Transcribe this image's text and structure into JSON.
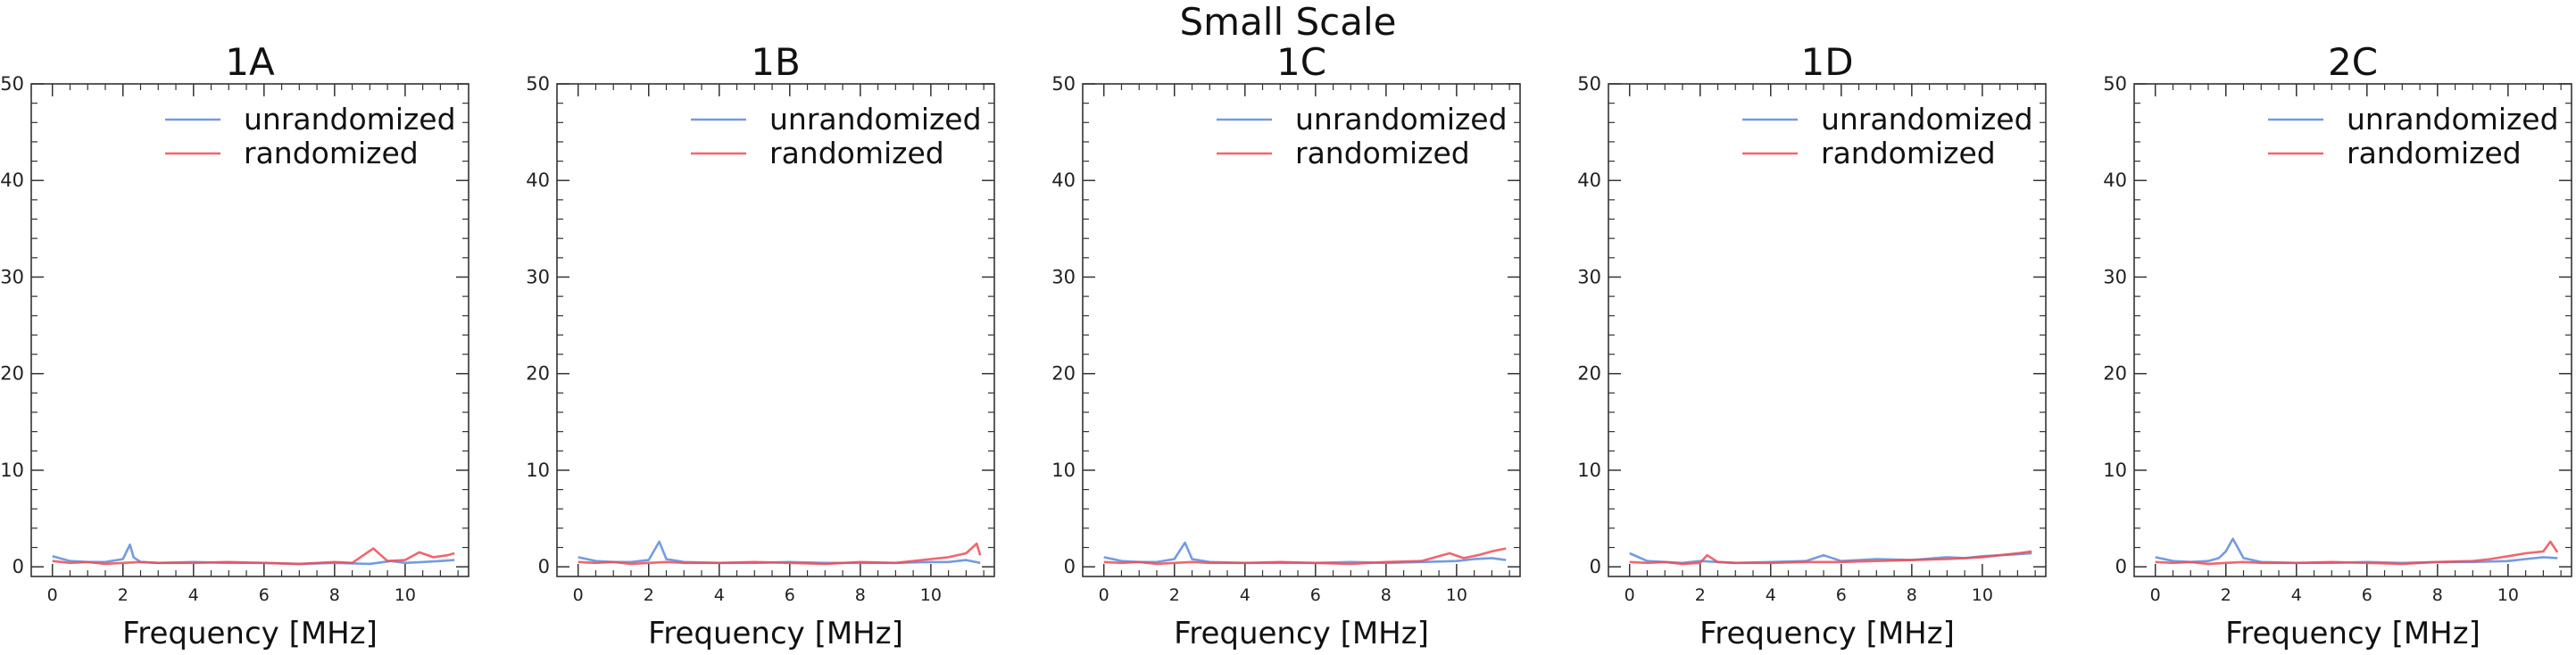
{
  "figure": {
    "suptitle": "Small Scale"
  },
  "colors": {
    "unrandomized": "#5b8bdc",
    "randomized": "#ee4b55"
  },
  "chart_data": [
    {
      "type": "line",
      "title": "1A",
      "xlabel": "Frequency [MHz]",
      "ylabel": "",
      "xlim": [
        -0.6,
        11.8
      ],
      "ylim": [
        -1,
        50
      ],
      "xticks": [
        0,
        2,
        4,
        6,
        8,
        10
      ],
      "yticks": [
        0,
        10,
        20,
        30,
        40,
        50
      ],
      "legend_position": "top-right",
      "series": [
        {
          "name": "unrandomized",
          "x": [
            0.0,
            0.5,
            1.0,
            1.5,
            2.0,
            2.2,
            2.3,
            2.5,
            3.0,
            4.0,
            5.0,
            6.0,
            7.0,
            8.0,
            9.0,
            9.6,
            10.0,
            10.5,
            11.0,
            11.4
          ],
          "values": [
            1.1,
            0.6,
            0.5,
            0.5,
            0.8,
            2.3,
            1.0,
            0.5,
            0.4,
            0.5,
            0.4,
            0.4,
            0.3,
            0.4,
            0.3,
            0.6,
            0.4,
            0.5,
            0.6,
            0.7
          ]
        },
        {
          "name": "randomized",
          "x": [
            0.0,
            0.5,
            1.0,
            1.5,
            2.0,
            2.5,
            3.0,
            4.0,
            5.0,
            6.0,
            7.0,
            8.0,
            8.5,
            9.1,
            9.5,
            10.0,
            10.4,
            10.8,
            11.2,
            11.4
          ],
          "values": [
            0.6,
            0.4,
            0.5,
            0.3,
            0.4,
            0.5,
            0.4,
            0.4,
            0.5,
            0.4,
            0.3,
            0.5,
            0.4,
            1.9,
            0.6,
            0.7,
            1.5,
            1.0,
            1.2,
            1.4
          ]
        }
      ]
    },
    {
      "type": "line",
      "title": "1B",
      "xlabel": "Frequency [MHz]",
      "ylabel": "",
      "xlim": [
        -0.6,
        11.8
      ],
      "ylim": [
        -1,
        50
      ],
      "xticks": [
        0,
        2,
        4,
        6,
        8,
        10
      ],
      "yticks": [
        0,
        10,
        20,
        30,
        40,
        50
      ],
      "legend_position": "top-right",
      "series": [
        {
          "name": "unrandomized",
          "x": [
            0.0,
            0.5,
            1.0,
            1.5,
            2.0,
            2.3,
            2.5,
            3.0,
            4.0,
            5.0,
            6.0,
            7.0,
            8.0,
            9.0,
            10.0,
            10.5,
            11.0,
            11.4
          ],
          "values": [
            1.0,
            0.6,
            0.5,
            0.5,
            0.7,
            2.6,
            0.8,
            0.5,
            0.4,
            0.4,
            0.5,
            0.4,
            0.4,
            0.4,
            0.5,
            0.5,
            0.7,
            0.4
          ]
        },
        {
          "name": "randomized",
          "x": [
            0.0,
            0.5,
            1.0,
            1.5,
            2.0,
            2.5,
            3.0,
            4.0,
            5.0,
            6.0,
            7.0,
            8.0,
            9.0,
            10.0,
            10.5,
            11.0,
            11.3,
            11.4
          ],
          "values": [
            0.5,
            0.4,
            0.5,
            0.3,
            0.4,
            0.5,
            0.4,
            0.4,
            0.5,
            0.4,
            0.3,
            0.5,
            0.4,
            0.8,
            1.0,
            1.4,
            2.4,
            1.2
          ]
        }
      ]
    },
    {
      "type": "line",
      "title": "1C",
      "xlabel": "Frequency [MHz]",
      "ylabel": "",
      "xlim": [
        -0.6,
        11.8
      ],
      "ylim": [
        -1,
        50
      ],
      "xticks": [
        0,
        2,
        4,
        6,
        8,
        10
      ],
      "yticks": [
        0,
        10,
        20,
        30,
        40,
        50
      ],
      "legend_position": "top-right",
      "series": [
        {
          "name": "unrandomized",
          "x": [
            0.0,
            0.5,
            1.0,
            1.5,
            2.0,
            2.3,
            2.5,
            3.0,
            4.0,
            5.0,
            6.0,
            7.0,
            8.0,
            9.0,
            10.0,
            10.5,
            11.0,
            11.4
          ],
          "values": [
            1.0,
            0.6,
            0.5,
            0.5,
            0.8,
            2.5,
            0.8,
            0.5,
            0.4,
            0.4,
            0.4,
            0.5,
            0.4,
            0.5,
            0.6,
            0.8,
            0.9,
            0.7
          ]
        },
        {
          "name": "randomized",
          "x": [
            0.0,
            0.5,
            1.0,
            1.5,
            2.0,
            2.5,
            3.0,
            4.0,
            5.0,
            6.0,
            7.0,
            8.0,
            9.0,
            9.8,
            10.2,
            10.6,
            11.0,
            11.4
          ],
          "values": [
            0.5,
            0.4,
            0.5,
            0.3,
            0.4,
            0.5,
            0.4,
            0.4,
            0.5,
            0.4,
            0.3,
            0.5,
            0.6,
            1.4,
            0.9,
            1.2,
            1.6,
            1.9
          ]
        }
      ]
    },
    {
      "type": "line",
      "title": "1D",
      "xlabel": "Frequency [MHz]",
      "ylabel": "",
      "xlim": [
        -0.6,
        11.8
      ],
      "ylim": [
        -1,
        50
      ],
      "xticks": [
        0,
        2,
        4,
        6,
        8,
        10
      ],
      "yticks": [
        0,
        10,
        20,
        30,
        40,
        50
      ],
      "legend_position": "top-right",
      "series": [
        {
          "name": "unrandomized",
          "x": [
            0.0,
            0.5,
            1.0,
            1.5,
            2.0,
            2.5,
            3.0,
            4.0,
            5.0,
            5.5,
            6.0,
            7.0,
            8.0,
            9.0,
            9.5,
            10.0,
            10.5,
            11.0,
            11.4
          ],
          "values": [
            1.4,
            0.6,
            0.5,
            0.4,
            0.6,
            0.5,
            0.4,
            0.5,
            0.6,
            1.2,
            0.6,
            0.8,
            0.7,
            1.0,
            0.9,
            1.1,
            1.2,
            1.3,
            1.4
          ]
        },
        {
          "name": "randomized",
          "x": [
            0.0,
            0.5,
            1.0,
            1.5,
            2.0,
            2.2,
            2.5,
            3.0,
            4.0,
            5.0,
            6.0,
            7.0,
            8.0,
            9.0,
            10.0,
            10.5,
            11.0,
            11.4
          ],
          "values": [
            0.5,
            0.4,
            0.5,
            0.3,
            0.4,
            1.2,
            0.5,
            0.4,
            0.4,
            0.5,
            0.5,
            0.6,
            0.7,
            0.8,
            1.0,
            1.2,
            1.4,
            1.6
          ]
        }
      ]
    },
    {
      "type": "line",
      "title": "2C",
      "xlabel": "Frequency [MHz]",
      "ylabel": "",
      "xlim": [
        -0.6,
        11.8
      ],
      "ylim": [
        -1,
        50
      ],
      "xticks": [
        0,
        2,
        4,
        6,
        8,
        10
      ],
      "yticks": [
        0,
        10,
        20,
        30,
        40,
        50
      ],
      "legend_position": "top-right",
      "series": [
        {
          "name": "unrandomized",
          "x": [
            0.0,
            0.5,
            1.0,
            1.5,
            1.8,
            2.0,
            2.2,
            2.5,
            3.0,
            4.0,
            5.0,
            6.0,
            7.0,
            8.0,
            9.0,
            10.0,
            10.5,
            11.0,
            11.4
          ],
          "values": [
            1.0,
            0.6,
            0.5,
            0.6,
            0.9,
            1.6,
            2.9,
            0.9,
            0.5,
            0.4,
            0.4,
            0.5,
            0.4,
            0.5,
            0.5,
            0.6,
            0.8,
            1.0,
            0.9
          ]
        },
        {
          "name": "randomized",
          "x": [
            0.0,
            0.5,
            1.0,
            1.5,
            2.0,
            2.5,
            3.0,
            4.0,
            5.0,
            6.0,
            7.0,
            8.0,
            9.0,
            9.5,
            10.0,
            10.5,
            11.0,
            11.2,
            11.4
          ],
          "values": [
            0.5,
            0.4,
            0.5,
            0.3,
            0.4,
            0.5,
            0.4,
            0.4,
            0.5,
            0.4,
            0.3,
            0.5,
            0.6,
            0.8,
            1.1,
            1.4,
            1.6,
            2.6,
            1.5
          ]
        }
      ]
    }
  ]
}
